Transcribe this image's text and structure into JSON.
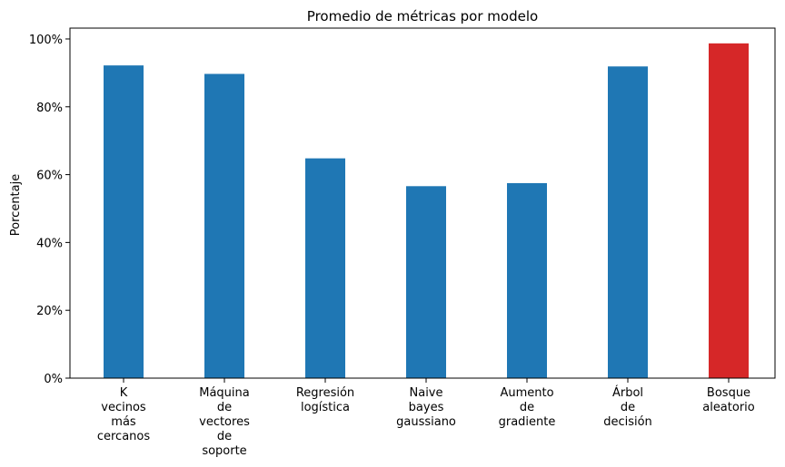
{
  "chart_data": {
    "type": "bar",
    "title": "Promedio de métricas por modelo",
    "xlabel": "",
    "ylabel": "Porcentaje",
    "ylim": [
      0,
      1.032
    ],
    "y_tick_values": [
      0,
      0.2,
      0.4,
      0.6,
      0.8,
      1.0
    ],
    "y_tick_labels": [
      "0%",
      "20%",
      "40%",
      "60%",
      "80%",
      "100%"
    ],
    "grid": false,
    "categories": [
      "K vecinos más cercanos",
      "Máquina de vectores de soporte",
      "Regresión logística",
      "Naive bayes gaussiano",
      "Aumento de gradiente",
      "Árbol de decisión",
      "Bosque aleatorio"
    ],
    "category_label_lines": [
      [
        "K",
        "vecinos",
        "más",
        "cercanos"
      ],
      [
        "Máquina",
        "de",
        "vectores",
        "de",
        "soporte"
      ],
      [
        "Regresión",
        "logística"
      ],
      [
        "Naive",
        "bayes",
        "gaussiano"
      ],
      [
        "Aumento",
        "de",
        "gradiente"
      ],
      [
        "Árbol",
        "de",
        "decisión"
      ],
      [
        "Bosque",
        "aleatorio"
      ]
    ],
    "values": [
      0.922,
      0.897,
      0.648,
      0.566,
      0.575,
      0.919,
      0.987
    ],
    "colors": [
      "#1f77b4",
      "#1f77b4",
      "#1f77b4",
      "#1f77b4",
      "#1f77b4",
      "#1f77b4",
      "#d62728"
    ]
  }
}
